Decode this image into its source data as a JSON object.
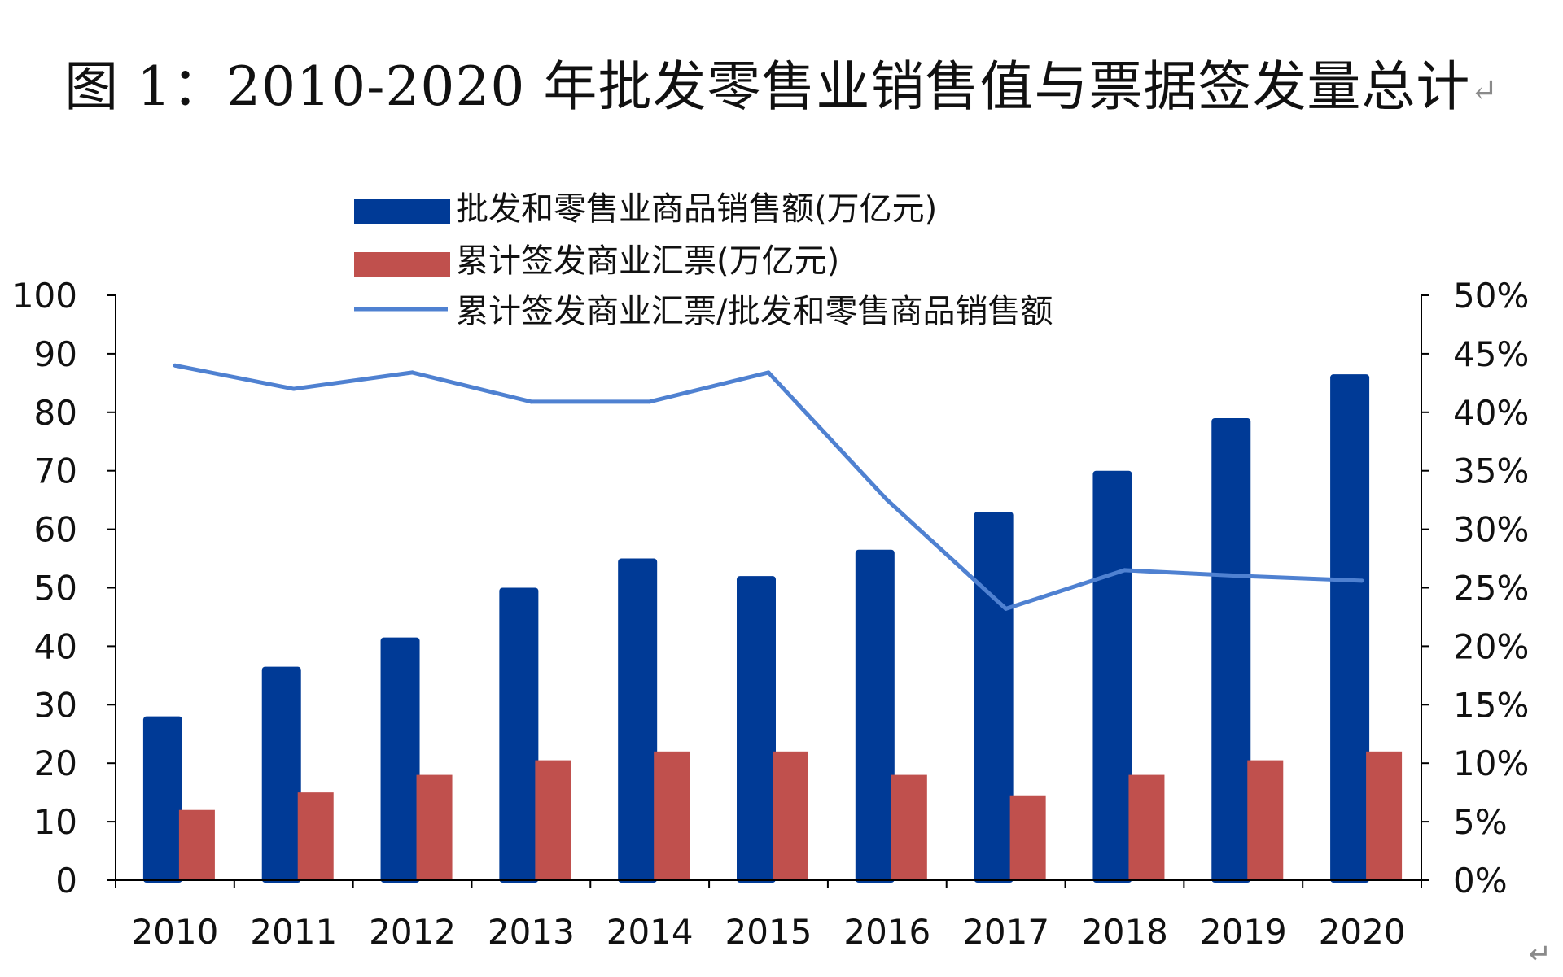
{
  "chart_data": {
    "type": "bar",
    "title": "图 1：2010-2020 年批发零售业销售值与票据签发量总计",
    "title_end_mark": "↵",
    "categories": [
      "2010",
      "2011",
      "2012",
      "2013",
      "2014",
      "2015",
      "2016",
      "2017",
      "2018",
      "2019",
      "2020"
    ],
    "series": [
      {
        "name": "批发和零售业商品销售额(万亿元)",
        "type": "bar",
        "axis": "left",
        "color": "#003A96",
        "values": [
          28,
          36.5,
          41.5,
          50,
          55,
          52,
          56.5,
          63,
          70,
          79,
          86.5
        ]
      },
      {
        "name": "累计签发商业汇票(万亿元)",
        "type": "bar",
        "axis": "left",
        "color": "#C0504D",
        "values": [
          12,
          15,
          18,
          20.5,
          22,
          22,
          18,
          14.5,
          18,
          20.5,
          22
        ]
      },
      {
        "name": "累计签发商业汇票/批发和零售商品销售额",
        "type": "line",
        "axis": "right",
        "color": "#4F81D1",
        "values": [
          44,
          42,
          43.4,
          40.9,
          40.9,
          43.4,
          32.5,
          23.2,
          26.5,
          26,
          25.6
        ]
      }
    ],
    "y_left": {
      "ylim": [
        0,
        100
      ],
      "ticks": [
        "0",
        "10",
        "20",
        "30",
        "40",
        "50",
        "60",
        "70",
        "80",
        "90",
        "100"
      ]
    },
    "y_right": {
      "ylim": [
        0,
        50
      ],
      "ticks": [
        "0%",
        "5%",
        "10%",
        "15%",
        "20%",
        "25%",
        "30%",
        "35%",
        "40%",
        "45%",
        "50%"
      ]
    },
    "grid": false,
    "legend_position": "top-left"
  },
  "corner_mark": "↵"
}
